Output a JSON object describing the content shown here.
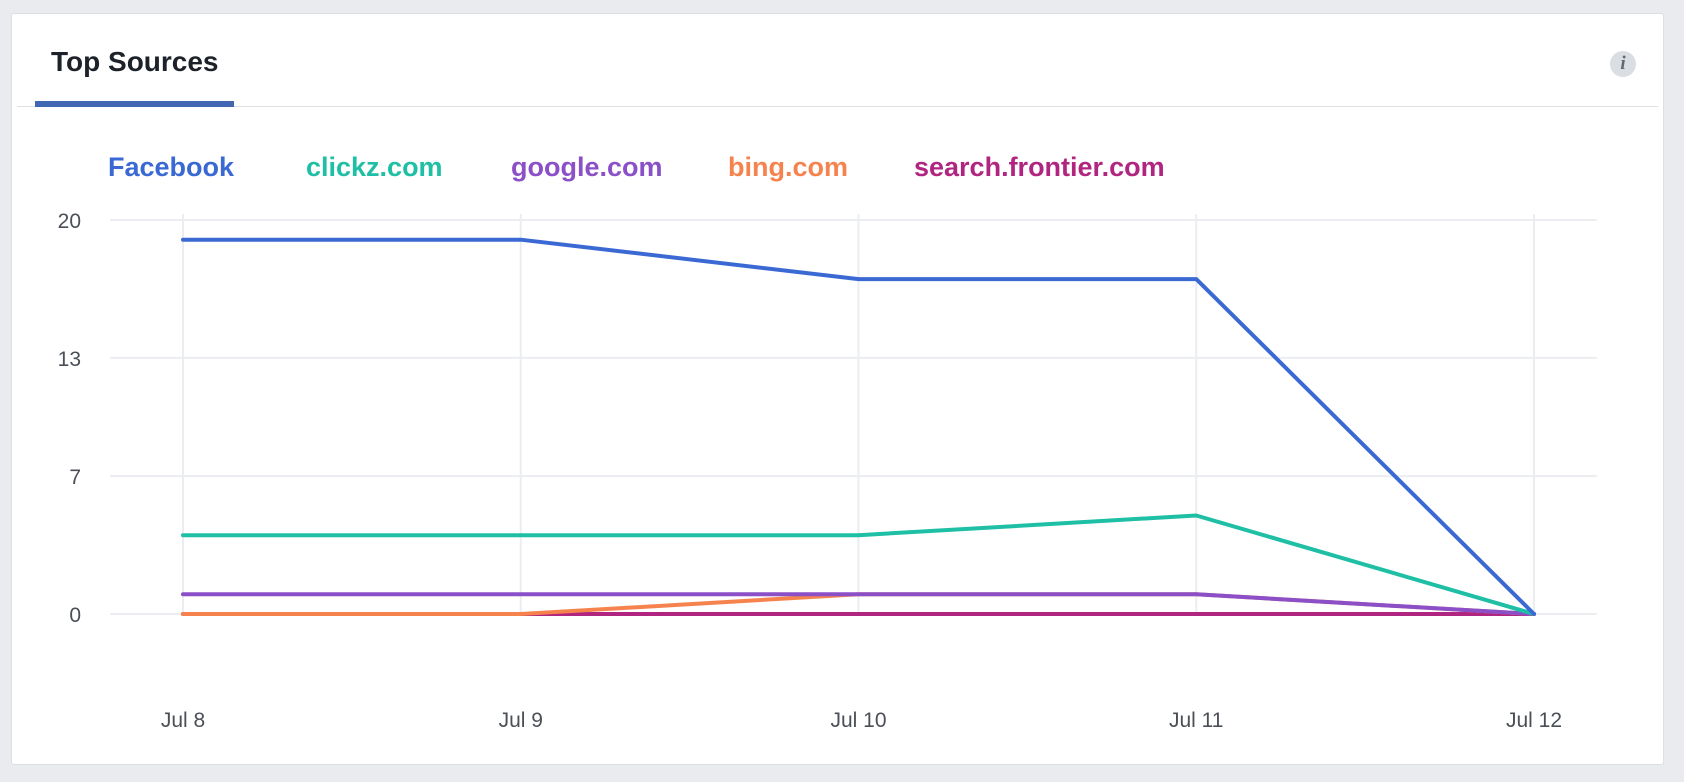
{
  "widget": {
    "tab_label": "Top Sources",
    "info_icon_glyph": "i"
  },
  "chart_data": {
    "type": "line",
    "title": "",
    "xlabel": "",
    "ylabel": "",
    "categories": [
      "Jul 8",
      "Jul 9",
      "Jul 10",
      "Jul 11",
      "Jul 12"
    ],
    "yticks": [
      0,
      7,
      13,
      20
    ],
    "ylim": [
      0,
      20
    ],
    "grid": true,
    "legend_position": "top-left",
    "series": [
      {
        "name": "Facebook",
        "color": "#3b69d4",
        "values": [
          19,
          19,
          17,
          17,
          0
        ]
      },
      {
        "name": "clickz.com",
        "color": "#1ebfa5",
        "values": [
          4,
          4,
          4,
          5,
          0
        ]
      },
      {
        "name": "google.com",
        "color": "#8b4fc8",
        "values": [
          1,
          1,
          1,
          1,
          0
        ]
      },
      {
        "name": "bing.com",
        "color": "#f6834e",
        "values": [
          0,
          0,
          1,
          1,
          0
        ]
      },
      {
        "name": "search.frontier.com",
        "color": "#b0257f",
        "values": [
          0,
          0,
          0,
          0,
          0
        ]
      }
    ]
  }
}
